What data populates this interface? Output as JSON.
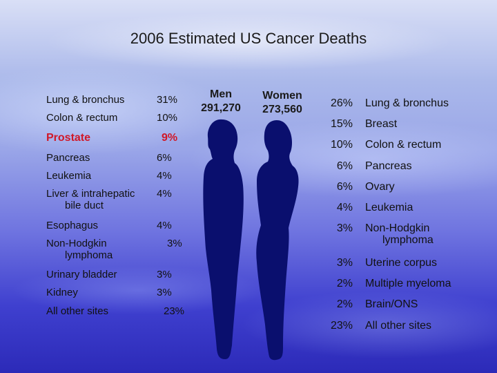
{
  "chart_data": {
    "type": "table",
    "title": "2006 Estimated US Cancer Deaths",
    "men": {
      "label": "Men",
      "total": "291,270",
      "sites": [
        {
          "name": "Lung & bronchus",
          "pct": "31%"
        },
        {
          "name": "Colon & rectum",
          "pct": "10%"
        },
        {
          "name": "Prostate",
          "pct": "9%",
          "highlight": true
        },
        {
          "name": "Pancreas",
          "pct": "6%"
        },
        {
          "name": "Leukemia",
          "pct": "4%"
        },
        {
          "name": "Liver & intrahepatic",
          "name2": "bile duct",
          "pct": "4%"
        },
        {
          "name": "Esophagus",
          "pct": "4%"
        },
        {
          "name": "Non-Hodgkin",
          "name2": "lymphoma",
          "pct": "3%"
        },
        {
          "name": "Urinary bladder",
          "pct": "3%"
        },
        {
          "name": "Kidney",
          "pct": "3%"
        },
        {
          "name": "All other sites",
          "pct": "23%"
        }
      ]
    },
    "women": {
      "label": "Women",
      "total": "273,560",
      "sites": [
        {
          "name": "Lung & bronchus",
          "pct": "26%"
        },
        {
          "name": "Breast",
          "pct": "15%"
        },
        {
          "name": "Colon & rectum",
          "pct": "10%"
        },
        {
          "name": "Pancreas",
          "pct": "6%"
        },
        {
          "name": "Ovary",
          "pct": "6%"
        },
        {
          "name": "Leukemia",
          "pct": "4%"
        },
        {
          "name": "Non-Hodgkin",
          "name2": "lymphoma",
          "pct": "3%"
        },
        {
          "name": "Uterine corpus",
          "pct": "3%"
        },
        {
          "name": "Multiple myeloma",
          "pct": "2%"
        },
        {
          "name": "Brain/ONS",
          "pct": "2%"
        },
        {
          "name": "All other sites",
          "pct": "23%"
        }
      ]
    },
    "colors": {
      "highlight": "#d01828",
      "silhouette": "#0a0f6e",
      "text": "#111111"
    }
  }
}
